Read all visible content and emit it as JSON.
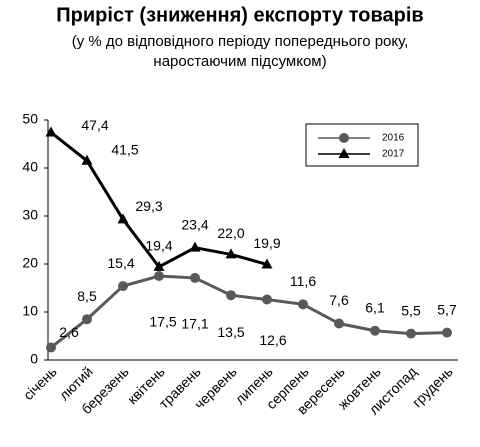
{
  "chart_data": {
    "type": "line",
    "title": "Приріст (зниження) експорту товарів",
    "subtitle": [
      "(у % до відповідного періоду попереднього року,",
      "наростаючим підсумком)"
    ],
    "categories": [
      "січень",
      "лютий",
      "березень",
      "квітень",
      "травень",
      "червень",
      "липень",
      "серпень",
      "вересень",
      "жовтень",
      "листопад",
      "грудень"
    ],
    "series": [
      {
        "name": "2016",
        "color": "#595959",
        "marker": "circle",
        "values": [
          2.6,
          8.5,
          15.4,
          17.5,
          17.1,
          13.5,
          12.6,
          11.6,
          7.6,
          6.1,
          5.5,
          5.7
        ],
        "value_labels": [
          "2,6",
          "8,5",
          "15,4",
          "17,5",
          "17,1",
          "13,5",
          "12,6",
          "11,6",
          "7,6",
          "6,1",
          "5,5",
          "5,7"
        ]
      },
      {
        "name": "2017",
        "color": "#000000",
        "marker": "triangle",
        "values": [
          47.4,
          41.5,
          29.3,
          19.4,
          23.4,
          22.0,
          19.9,
          null,
          null,
          null,
          null,
          null
        ],
        "value_labels": [
          "47,4",
          "41,5",
          "29,3",
          "19,4",
          "23,4",
          "22,0",
          "19,9",
          null,
          null,
          null,
          null,
          null
        ]
      }
    ],
    "ylim": [
      0,
      50
    ],
    "yticks": [
      0,
      10,
      20,
      30,
      40,
      50
    ],
    "grid": false,
    "legend": "upper right"
  }
}
